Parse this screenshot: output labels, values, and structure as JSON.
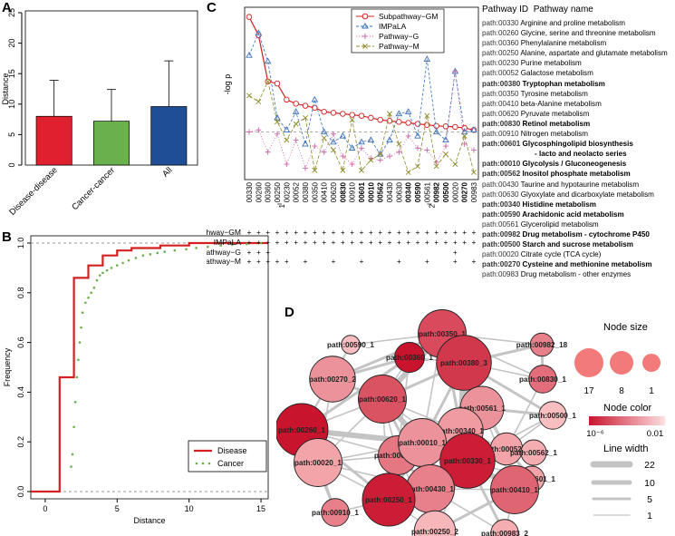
{
  "panel_labels": {
    "a": "A",
    "b": "B",
    "c": "C",
    "d": "D"
  },
  "chart_data": [
    {
      "id": "A",
      "type": "bar",
      "ylabel": "Distance",
      "ylim": [
        0,
        25
      ],
      "yticks": [
        0,
        5,
        10,
        15,
        20,
        25
      ],
      "categories": [
        "Disease-disease",
        "Cancer-cancer",
        "All"
      ],
      "values": [
        8.0,
        7.2,
        9.6
      ],
      "errors_upper": [
        13.9,
        12.4,
        17.1
      ],
      "colors": [
        "#e0202e",
        "#6ab04c",
        "#1f4e96"
      ]
    },
    {
      "id": "B",
      "type": "line",
      "xlabel": "Distance",
      "ylabel": "Frequency",
      "xlim": [
        -1,
        15.5
      ],
      "ylim": [
        0,
        1.0
      ],
      "xticks": [
        0,
        5,
        10,
        15
      ],
      "yticks": [
        0.0,
        0.2,
        0.4,
        0.6,
        0.8,
        1.0
      ],
      "series": [
        {
          "name": "Disease",
          "color": "#d42020",
          "style": "step",
          "x": [
            -1,
            1,
            1,
            2,
            2,
            3,
            3,
            4,
            4,
            5,
            5,
            6,
            6,
            8,
            8,
            10,
            10,
            15.5
          ],
          "y": [
            0,
            0,
            0.46,
            0.46,
            0.86,
            0.86,
            0.91,
            0.91,
            0.95,
            0.95,
            0.97,
            0.97,
            0.98,
            0.98,
            0.99,
            0.99,
            1.0,
            1.0
          ]
        },
        {
          "name": "Cancer",
          "color": "#6ab04c",
          "style": "dots",
          "x": [
            1.8,
            1.9,
            2.0,
            2.1,
            2.2,
            2.3,
            2.4,
            2.5,
            2.6,
            2.8,
            3.0,
            3.2,
            3.4,
            3.6,
            3.8,
            4.0,
            4.3,
            4.6,
            5.0,
            5.4,
            5.8,
            6.3,
            6.8,
            7.3,
            7.8,
            8.3,
            9.0,
            9.8,
            10.5,
            11.3,
            12.2,
            13.0,
            14.0,
            15.0
          ],
          "y": [
            0.1,
            0.15,
            0.26,
            0.36,
            0.46,
            0.53,
            0.6,
            0.66,
            0.72,
            0.76,
            0.78,
            0.8,
            0.82,
            0.85,
            0.87,
            0.88,
            0.89,
            0.9,
            0.91,
            0.92,
            0.93,
            0.94,
            0.95,
            0.955,
            0.96,
            0.965,
            0.97,
            0.975,
            0.98,
            0.985,
            0.99,
            0.993,
            0.996,
            1.0
          ]
        }
      ]
    },
    {
      "id": "C",
      "type": "line",
      "ylabel": "-log p",
      "ylim": [
        0,
        8
      ],
      "categories": [
        "00330",
        "00260",
        "00360",
        "00250",
        "00230",
        "00052",
        "00380",
        "00350",
        "00410",
        "00620",
        "00830",
        "00910",
        "00601",
        "00010",
        "00562",
        "00430",
        "00630",
        "00340",
        "00590",
        "00561",
        "00982",
        "00500",
        "00020",
        "00270",
        "00983"
      ],
      "bold_categories": [
        "00830",
        "00601",
        "00010",
        "00562",
        "00340",
        "00590",
        "00982",
        "00500",
        "00270"
      ],
      "sub_markers": {
        "00250": "1",
        "00561": "2"
      },
      "threshold": 2.0,
      "series": [
        {
          "name": "Subpathway−GM",
          "color": "#d42020",
          "marker": "circle",
          "values": [
            7.7,
            6.8,
            4.5,
            4.4,
            3.6,
            3.4,
            3.3,
            3.2,
            3.0,
            2.95,
            2.9,
            2.85,
            2.8,
            2.7,
            2.6,
            2.55,
            2.5,
            2.45,
            2.4,
            2.35,
            2.3,
            2.28,
            2.25,
            2.2,
            2.1
          ]
        },
        {
          "name": "IMPaLA",
          "color": "#3a6fb8",
          "marker": "triangle",
          "values": [
            5.8,
            6.9,
            5.5,
            2.7,
            2.1,
            3.0,
            1.4,
            3.6,
            2.0,
            1.5,
            1.8,
            1.2,
            1.5,
            1.6,
            0.9,
            1.6,
            2.9,
            3.0,
            1.8,
            5.6,
            2.0,
            1.6,
            5.0,
            2.0,
            2.1
          ]
        },
        {
          "name": "Pathway−G",
          "color": "#cc66aa",
          "marker": "plus",
          "values": [
            2.0,
            2.1,
            1.0,
            1.9,
            0.4,
            1.6,
            0.2,
            1.3,
            1.0,
            1.9,
            0.8,
            0.4,
            1.2,
            0.7,
            0.6,
            0.8,
            1.0,
            1.8,
            1.2,
            1.1,
            0.5,
            1.3,
            5.0,
            1.4,
            1.1
          ]
        },
        {
          "name": "Pathway−M",
          "color": "#8a8a2a",
          "marker": "cross",
          "values": [
            3.8,
            3.5,
            4.5,
            2.5,
            1.6,
            2.4,
            2.7,
            0.1,
            1.7,
            1.1,
            0.1,
            2.6,
            0.1,
            0.6,
            0.9,
            2.9,
            1.4,
            0.0,
            0.3,
            2.8,
            0.3,
            0.9,
            0.4,
            1.8,
            0.0
          ]
        }
      ],
      "method_rows": [
        "Subpathway−GM",
        "IMPaLA",
        "Pathway−G",
        "Pathway−M"
      ],
      "method_marks": [
        [
          1,
          1,
          1,
          1,
          1,
          1,
          1,
          1,
          1,
          1,
          1,
          1,
          1,
          1,
          1,
          1,
          1,
          1,
          1,
          1,
          1,
          1,
          1,
          1,
          1
        ],
        [
          1,
          1,
          1,
          1,
          1,
          1,
          1,
          1,
          1,
          1,
          1,
          1,
          1,
          1,
          1,
          1,
          1,
          1,
          1,
          1,
          1,
          1,
          1,
          1,
          1
        ],
        [
          1,
          1,
          1,
          0,
          0,
          0,
          0,
          0,
          0,
          0,
          0,
          0,
          0,
          0,
          0,
          0,
          0,
          0,
          0,
          0,
          0,
          0,
          1,
          0,
          0
        ],
        [
          1,
          1,
          1,
          1,
          1,
          0,
          1,
          0,
          0,
          1,
          0,
          0,
          1,
          0,
          0,
          0,
          1,
          0,
          0,
          1,
          0,
          0,
          1,
          0,
          1
        ]
      ]
    },
    {
      "id": "D",
      "type": "network",
      "nodes": [
        {
          "label": "path:00350_1",
          "size": 14,
          "p": 0.3
        },
        {
          "label": "path:00590_1",
          "size": 1,
          "p": 0.95
        },
        {
          "label": "path:00982_18",
          "size": 3,
          "p": 0.6
        },
        {
          "label": "path:00270_2",
          "size": 13,
          "p": 0.7
        },
        {
          "label": "path:00360_1",
          "size": 6,
          "p": 0.0
        },
        {
          "label": "path:00380_3",
          "size": 17,
          "p": 0.2
        },
        {
          "label": "path:00830_1",
          "size": 5,
          "p": 0.5
        },
        {
          "label": "path:00620_1",
          "size": 14,
          "p": 0.35
        },
        {
          "label": "path:00561_1",
          "size": 12,
          "p": 0.7
        },
        {
          "label": "path:00260_1",
          "size": 16,
          "p": 0.0
        },
        {
          "label": "path:00340_1",
          "size": 13,
          "p": 0.75
        },
        {
          "label": "path:00500_1",
          "size": 5,
          "p": 0.95
        },
        {
          "label": "path:00630_2",
          "size": 10,
          "p": 0.55
        },
        {
          "label": "path:00010_1",
          "size": 14,
          "p": 0.7
        },
        {
          "label": "path:00052_1",
          "size": 7,
          "p": 0.8
        },
        {
          "label": "path:00562_1",
          "size": 4,
          "p": 0.85
        },
        {
          "label": "path:00020_1",
          "size": 14,
          "p": 0.8
        },
        {
          "label": "path:00330_1",
          "size": 17,
          "p": 0.05
        },
        {
          "label": "path:00601_1",
          "size": 4,
          "p": 0.8
        },
        {
          "label": "path:00430_1",
          "size": 14,
          "p": 0.6
        },
        {
          "label": "path:00410_1",
          "size": 14,
          "p": 0.45
        },
        {
          "label": "path:00250_1",
          "size": 16,
          "p": 0.05
        },
        {
          "label": "path:00910_1",
          "size": 5,
          "p": 0.6
        },
        {
          "label": "path:00983_2",
          "size": 5,
          "p": 0.85
        },
        {
          "label": "path:00250_2",
          "size": 11,
          "p": 0.9
        }
      ]
    }
  ],
  "legend_d": {
    "node_size_title": "Node size",
    "node_size_values": [
      "17",
      "8",
      "1"
    ],
    "node_color_title": "Node color",
    "color_low": "10⁻⁶",
    "color_high": "0.01",
    "line_width_title": "Line width",
    "line_width_values": [
      "22",
      "10",
      "5",
      "1"
    ]
  },
  "pathway_table": {
    "header_id": "Pathway ID",
    "header_name": "Pathway name",
    "rows": [
      {
        "id": "path:00330",
        "name": "Arginine and proline metabolism",
        "bold": false
      },
      {
        "id": "path:00260",
        "name": "Glycine, serine and threonine metabolism",
        "bold": false
      },
      {
        "id": "path:00360",
        "name": "Phenylalanine metabolism",
        "bold": false
      },
      {
        "id": "path:00250",
        "name": "Alanine, aspartate and glutamate metabolism",
        "bold": false
      },
      {
        "id": "path:00230",
        "name": "Purine metabolism",
        "bold": false
      },
      {
        "id": "path:00052",
        "name": "Galactose metabolism",
        "bold": false
      },
      {
        "id": "path:00380",
        "name": "Tryptophan metabolism",
        "bold": true
      },
      {
        "id": "path:00350",
        "name": "Tyrosine metabolism",
        "bold": false
      },
      {
        "id": "path:00410",
        "name": "beta-Alanine metabolism",
        "bold": false
      },
      {
        "id": "path:00620",
        "name": "Pyruvate metabolism",
        "bold": false
      },
      {
        "id": "path:00830",
        "name": "Retinol metabolism",
        "bold": true
      },
      {
        "id": "path:00910",
        "name": "Nitrogen metabolism",
        "bold": false
      },
      {
        "id": "path:00601",
        "name": "Glycosphingolipid biosynthesis",
        "bold": true
      },
      {
        "id": "",
        "name": "- lacto and neolacto series",
        "bold": true
      },
      {
        "id": "path:00010",
        "name": "Glycolysis / Gluconeogenesis",
        "bold": true
      },
      {
        "id": "path:00562",
        "name": "Inositol phosphate metabolism",
        "bold": true
      },
      {
        "id": "path:00430",
        "name": "Taurine and hypotaurine metabolism",
        "bold": false
      },
      {
        "id": "path:00630",
        "name": "Glyoxylate and dicarboxylate metabolism",
        "bold": false
      },
      {
        "id": "path:00340",
        "name": "Histidine metabolism",
        "bold": true
      },
      {
        "id": "path:00590",
        "name": "Arachidonic acid metabolism",
        "bold": true
      },
      {
        "id": "path:00561",
        "name": "Glycerolipid metabolism",
        "bold": false
      },
      {
        "id": "path:00982",
        "name": "Drug metabolism - cytochrome P450",
        "bold": true
      },
      {
        "id": "path:00500",
        "name": "Starch and sucrose metabolism",
        "bold": true
      },
      {
        "id": "path:00020",
        "name": "Citrate cycle (TCA cycle)",
        "bold": false
      },
      {
        "id": "path:00270",
        "name": "Cysteine and methionine metabolism",
        "bold": true
      },
      {
        "id": "path:00983",
        "name": "Drug metabolism - other enzymes",
        "bold": false
      }
    ]
  }
}
